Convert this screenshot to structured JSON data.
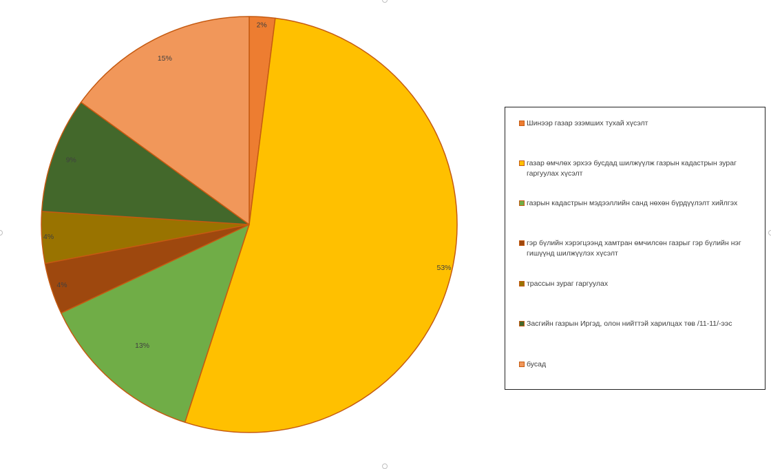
{
  "chart_data": {
    "type": "pie",
    "start_angle_deg": 0,
    "direction": "clockwise",
    "series": [
      {
        "values": [
          2,
          53,
          13,
          4,
          4,
          9,
          15
        ],
        "labels": [
          "2%",
          "53%",
          "13%",
          "4%",
          "4%",
          "9%",
          "15%"
        ],
        "colors": [
          "#ed7d31",
          "#ffc000",
          "#70ad47",
          "#9e480e",
          "#997300",
          "#43682b",
          "#f1975a"
        ]
      }
    ],
    "slice_edge_color": "#c55a11",
    "legend": {
      "position": "right",
      "entries": [
        {
          "label": "Шинээр газар эзэмших тухай хүсэлт",
          "color": "#ed7d31"
        },
        {
          "label": "газар өмчлөх эрхээ бусдад шилжүүлж газрын кадастрын зураг гаргуулах хүсэлт",
          "color": "#ffc000"
        },
        {
          "label": "газрын кадастрын мэдээллийн санд нөхөн бүрдүүлэлт хийлгэх",
          "color": "#70ad47"
        },
        {
          "label": "гэр бүлийн хэрэгцээнд хамтран өмчилсөн газрыг гэр бүлийн нэг гишүүнд шилжүүлэх хүсэлт",
          "color": "#9e480e"
        },
        {
          "label": "трассын зураг гаргуулах",
          "color": "#997300"
        },
        {
          "label": "Засгийн газрын Иргэд, олон нийттэй харилцах төв /11-11/-ээс",
          "color": "#43682b"
        },
        {
          "label": "бусад",
          "color": "#f1975a"
        }
      ]
    }
  }
}
